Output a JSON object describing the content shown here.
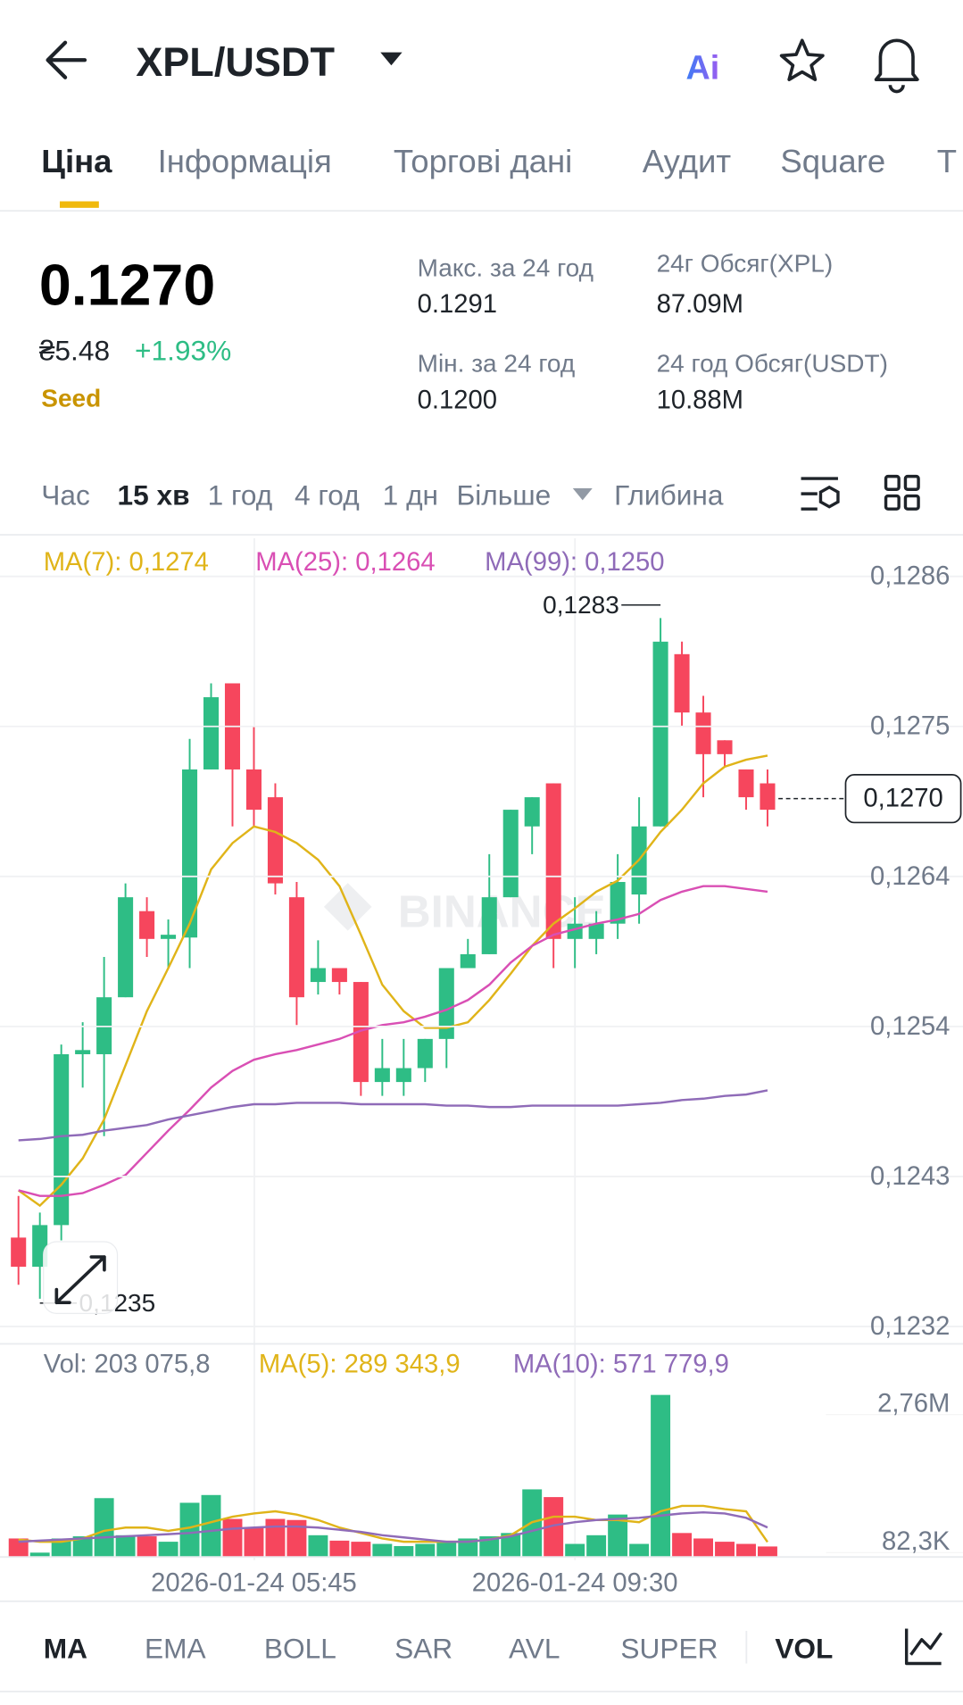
{
  "header": {
    "pair": "XPL/USDT",
    "ai": "Ai"
  },
  "tabs": [
    "Ціна",
    "Інформація",
    "Торгові дані",
    "Аудит",
    "Square",
    "Т"
  ],
  "price": {
    "last": "0.1270",
    "fiat": "₴5.48",
    "change": "+1.93%",
    "tag": "Seed"
  },
  "stats": [
    {
      "label": "Макс. за 24 год",
      "value": "0.1291"
    },
    {
      "label": "Мін. за 24 год",
      "value": "0.1200"
    },
    {
      "label": "24г Обсяг(XPL)",
      "value": "87.09M"
    },
    {
      "label": "24 год Обсяг(USDT)",
      "value": "10.88M"
    }
  ],
  "intervals": [
    "Час",
    "15 хв",
    "1 год",
    "4 год",
    "1 дн",
    "Більше",
    "Глибина"
  ],
  "indicators": [
    "MA",
    "EMA",
    "BOLL",
    "SAR",
    "AVL",
    "SUPER",
    "VOL"
  ],
  "chart_data": {
    "type": "candlestick",
    "watermark": "BINANCE",
    "categories": [
      null,
      null,
      null,
      null,
      null,
      null,
      null,
      null,
      null,
      null,
      null,
      "2026-01-24 05:45",
      null,
      null,
      null,
      null,
      null,
      null,
      null,
      null,
      null,
      null,
      null,
      null,
      null,
      null,
      "2026-01-24 09:30",
      null,
      null,
      null,
      null,
      null,
      null,
      null,
      null,
      null
    ],
    "open": [
      0.12384,
      0.12363,
      0.12393,
      0.12516,
      0.12516,
      0.12557,
      0.12619,
      0.12599,
      0.126,
      0.12721,
      0.12783,
      0.12721,
      0.12701,
      0.12629,
      0.12568,
      0.12578,
      0.12568,
      0.12496,
      0.12496,
      0.12506,
      0.12527,
      0.12578,
      0.12588,
      0.12629,
      0.1268,
      0.12711,
      0.12599,
      0.12599,
      0.1261,
      0.12631,
      0.1268,
      0.12804,
      0.12762,
      0.12742,
      0.12721,
      0.12711
    ],
    "high": [
      0.12414,
      0.12402,
      0.12523,
      0.12539,
      0.12586,
      0.12639,
      0.12629,
      0.12613,
      0.12743,
      0.12783,
      0.12783,
      0.12752,
      0.12711,
      0.1264,
      0.12598,
      0.12578,
      0.12568,
      0.12527,
      0.12527,
      0.12527,
      0.12578,
      0.12599,
      0.1266,
      0.12692,
      0.12701,
      0.12711,
      0.12629,
      0.12619,
      0.1266,
      0.12701,
      0.1283,
      0.12813,
      0.12774,
      0.12742,
      0.12721,
      0.12721
    ],
    "low": [
      0.1235,
      0.1234,
      0.12382,
      0.12492,
      0.12457,
      0.12557,
      0.12586,
      0.12578,
      0.12578,
      0.12721,
      0.1268,
      0.1268,
      0.12631,
      0.12537,
      0.12559,
      0.12559,
      0.12486,
      0.12486,
      0.12486,
      0.12496,
      0.12506,
      0.12578,
      0.12588,
      0.12629,
      0.1266,
      0.12578,
      0.12578,
      0.12588,
      0.12599,
      0.1261,
      0.1268,
      0.12752,
      0.12701,
      0.12723,
      0.12692,
      0.1268
    ],
    "close": [
      0.12363,
      0.12393,
      0.12516,
      0.12519,
      0.12557,
      0.12629,
      0.12599,
      0.12602,
      0.12721,
      0.12773,
      0.12721,
      0.12692,
      0.12639,
      0.12557,
      0.12578,
      0.12568,
      0.12496,
      0.12506,
      0.12506,
      0.12527,
      0.12578,
      0.12588,
      0.12629,
      0.12692,
      0.12701,
      0.12599,
      0.1261,
      0.1261,
      0.1264,
      0.1268,
      0.12813,
      0.12762,
      0.12732,
      0.12732,
      0.12701,
      0.12692
    ],
    "ma_series": [
      {
        "name": "MA(7): 0,1274",
        "color": "#e0b419",
        "values": [
          0.12418,
          0.12407,
          0.12422,
          0.12441,
          0.12469,
          0.12508,
          0.12547,
          0.12578,
          0.1261,
          0.12649,
          0.12668,
          0.1268,
          0.12676,
          0.12668,
          0.12656,
          0.12637,
          0.12602,
          0.12566,
          0.12547,
          0.12535,
          0.12535,
          0.12539,
          0.12555,
          0.12574,
          0.12594,
          0.1261,
          0.12621,
          0.12633,
          0.12641,
          0.12656,
          0.12676,
          0.12692,
          0.12711,
          0.12723,
          0.12728,
          0.12731
        ]
      },
      {
        "name": "MA(25): 0,1264",
        "color": "#d94fb4",
        "values": [
          0.12418,
          0.12414,
          0.12414,
          0.12416,
          0.12422,
          0.12429,
          0.12445,
          0.12461,
          0.12476,
          0.12492,
          0.12504,
          0.12512,
          0.12516,
          0.12519,
          0.12523,
          0.12527,
          0.12533,
          0.12537,
          0.12539,
          0.12543,
          0.12548,
          0.12555,
          0.12566,
          0.12582,
          0.12594,
          0.12602,
          0.12606,
          0.1261,
          0.12613,
          0.12617,
          0.12627,
          0.12633,
          0.12637,
          0.12637,
          0.12635,
          0.12633
        ]
      },
      {
        "name": "MA(99): 0,1250",
        "color": "#8f6bb8",
        "values": [
          0.12454,
          0.12455,
          0.12457,
          0.12458,
          0.12461,
          0.12463,
          0.12465,
          0.12469,
          0.12472,
          0.12475,
          0.12478,
          0.1248,
          0.1248,
          0.12481,
          0.12481,
          0.12481,
          0.1248,
          0.1248,
          0.1248,
          0.1248,
          0.12479,
          0.12479,
          0.12478,
          0.12478,
          0.12479,
          0.12479,
          0.12479,
          0.12479,
          0.12479,
          0.1248,
          0.12481,
          0.12483,
          0.12484,
          0.12486,
          0.12487,
          0.1249
        ]
      }
    ],
    "ylim": [
      0.1232,
      0.1286
    ],
    "yticks": [
      {
        "value": 0.1286,
        "label": "0,1286"
      },
      {
        "value": 0.12752,
        "label": "0,1275"
      },
      {
        "value": 0.12644,
        "label": "0,1264"
      },
      {
        "value": 0.12536,
        "label": "0,1254"
      },
      {
        "value": 0.12428,
        "label": "0,1243"
      },
      {
        "value": 0.1232,
        "label": "0,1232"
      }
    ],
    "last_price": {
      "value": 0.127,
      "label": "0,1270"
    },
    "max_label": "0,1283",
    "min_label": "0,1235",
    "volume": {
      "label": "Vol: 203 075,8",
      "values": [
        358000,
        84000,
        358000,
        400000,
        1140000,
        421000,
        400000,
        295000,
        1050000,
        1200000,
        737000,
        569000,
        737000,
        716000,
        421000,
        316000,
        295000,
        253000,
        211000,
        253000,
        295000,
        358000,
        400000,
        464000,
        1310000,
        1160000,
        253000,
        421000,
        822000,
        253000,
        3140000,
        464000,
        358000,
        295000,
        253000,
        203076
      ],
      "ma_series": [
        {
          "name": "MA(5): 289 343,9",
          "color": "#e0b419",
          "values": [
            337000,
            295000,
            295000,
            358000,
            506000,
            569000,
            569000,
            506000,
            569000,
            674000,
            780000,
            843000,
            885000,
            822000,
            716000,
            569000,
            464000,
            358000,
            295000,
            295000,
            295000,
            295000,
            337000,
            421000,
            674000,
            780000,
            780000,
            716000,
            716000,
            674000,
            885000,
            990000,
            990000,
            927000,
            885000,
            289344
          ]
        },
        {
          "name": "MA(10): 571 779,9",
          "color": "#8f6bb8",
          "values": [
            295000,
            316000,
            337000,
            358000,
            379000,
            400000,
            421000,
            442000,
            464000,
            506000,
            548000,
            569000,
            590000,
            590000,
            569000,
            527000,
            485000,
            421000,
            379000,
            337000,
            295000,
            295000,
            337000,
            400000,
            506000,
            611000,
            674000,
            716000,
            737000,
            758000,
            801000,
            843000,
            864000,
            843000,
            758000,
            571780
          ]
        }
      ],
      "ylim": [
        0,
        4045000
      ],
      "yticks": [
        {
          "value": 2760000,
          "label": "2,76M"
        },
        {
          "value": 82300,
          "label": "82,3K"
        }
      ]
    }
  }
}
